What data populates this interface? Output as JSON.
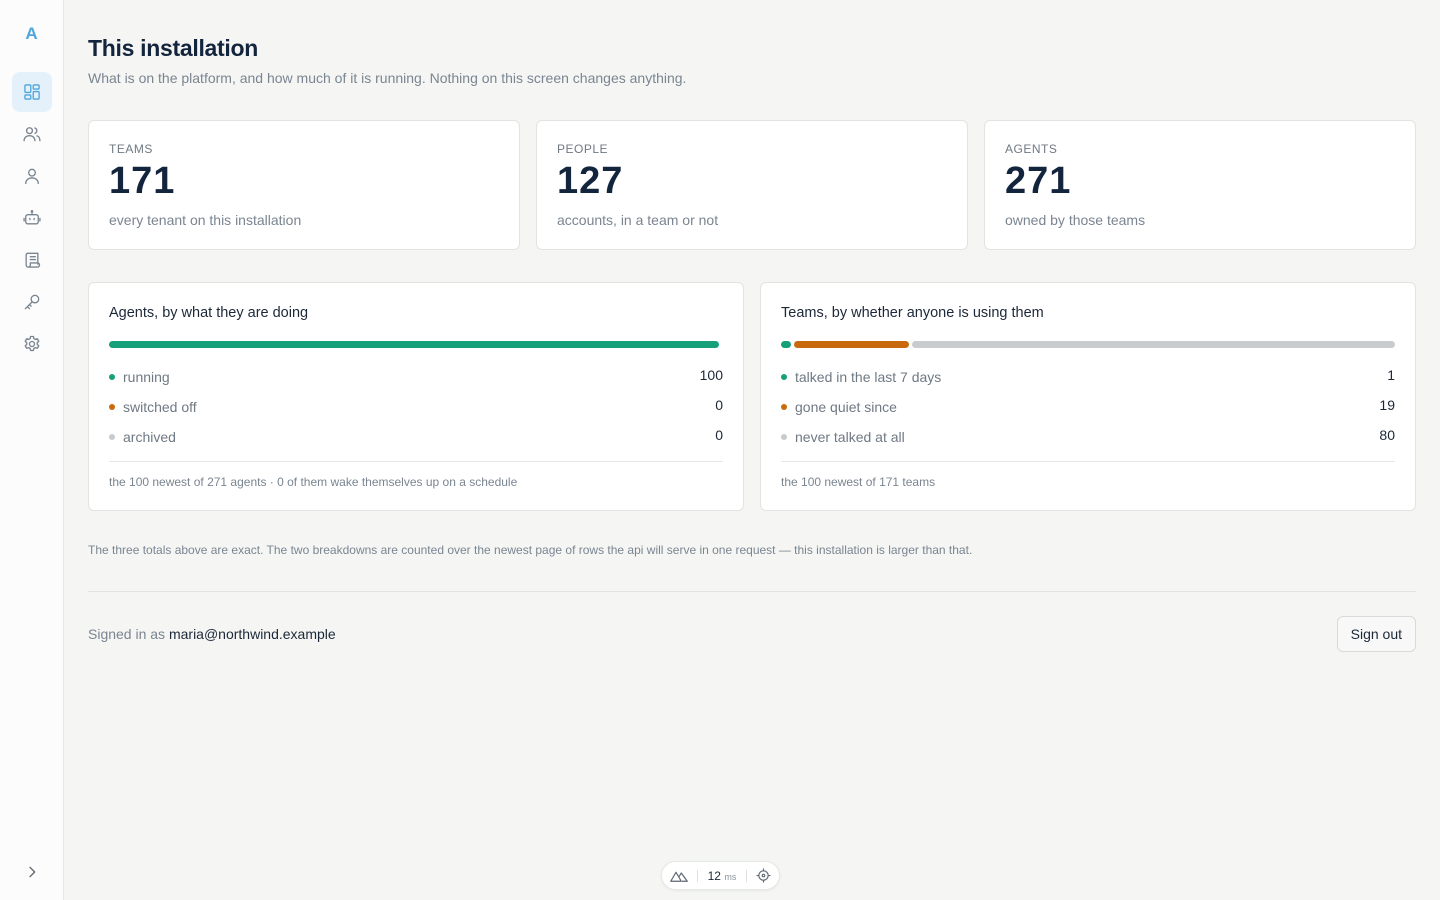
{
  "app": {
    "logo_letter": "A"
  },
  "sidebar": {
    "items": [
      {
        "icon": "dashboard-icon",
        "active": true
      },
      {
        "icon": "users-icon",
        "active": false
      },
      {
        "icon": "user-icon",
        "active": false
      },
      {
        "icon": "robot-icon",
        "active": false
      },
      {
        "icon": "scroll-icon",
        "active": false
      },
      {
        "icon": "key-icon",
        "active": false
      },
      {
        "icon": "gear-icon",
        "active": false
      }
    ],
    "collapse_icon": "chevron-right-icon"
  },
  "page": {
    "title": "This installation",
    "subtitle": "What is on the platform, and how much of it is running. Nothing on this screen changes anything."
  },
  "stats": [
    {
      "label": "TEAMS",
      "value": "171",
      "desc": "every tenant on this installation"
    },
    {
      "label": "PEOPLE",
      "value": "127",
      "desc": "accounts, in a team or not"
    },
    {
      "label": "AGENTS",
      "value": "271",
      "desc": "owned by those teams"
    }
  ],
  "agents_panel": {
    "title": "Agents, by what they are doing",
    "rows": [
      {
        "label": "running",
        "value": "100",
        "color": "#16a07a"
      },
      {
        "label": "switched off",
        "value": "0",
        "color": "#c86a0c"
      },
      {
        "label": "archived",
        "value": "0",
        "color": "#c8cccf"
      }
    ],
    "footer": "the 100 newest of 271 agents · 0 of them wake themselves up on a schedule"
  },
  "teams_panel": {
    "title": "Teams, by whether anyone is using them",
    "rows": [
      {
        "label": "talked in the last 7 days",
        "value": "1",
        "color": "#16a07a"
      },
      {
        "label": "gone quiet since",
        "value": "19",
        "color": "#c86a0c"
      },
      {
        "label": "never talked at all",
        "value": "80",
        "color": "#c8cccf"
      }
    ],
    "footer": "the 100 newest of 171 teams"
  },
  "note": "The three totals above are exact. The two breakdowns are counted over the newest page of rows the api will serve in one request — this installation is larger than that.",
  "session": {
    "prefix": "Signed in as",
    "email": "maria@northwind.example",
    "signout_label": "Sign out"
  },
  "devbar": {
    "ms_value": "12",
    "ms_unit": "ms"
  },
  "colors": {
    "accent": "#4ea6dc",
    "running": "#16a07a",
    "off": "#c86a0c",
    "muted": "#c8cccf"
  }
}
